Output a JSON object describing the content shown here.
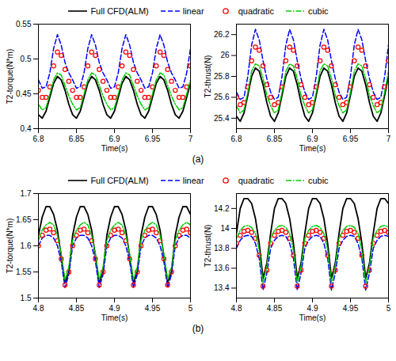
{
  "chart_data": [
    {
      "type": "line",
      "ylabel": "T2-torque(N*m)",
      "xlabel": "Time(s)",
      "legend": "top",
      "annotation": "(a)",
      "xlim": [
        6.8,
        7
      ],
      "xticks": [
        6.8,
        6.85,
        6.9,
        6.95,
        7
      ],
      "ylim": [
        0.4,
        0.55
      ],
      "yticks": [
        0.4,
        0.45,
        0.5,
        0.55
      ],
      "x": [
        6.8,
        6.805,
        6.81,
        6.815,
        6.82,
        6.825,
        6.83,
        6.835,
        6.84,
        6.845,
        6.85,
        6.855,
        6.86,
        6.865,
        6.87,
        6.875,
        6.88,
        6.885,
        6.89,
        6.895,
        6.9,
        6.905,
        6.91,
        6.915,
        6.92,
        6.925,
        6.93,
        6.935,
        6.94,
        6.945,
        6.95,
        6.955,
        6.96,
        6.965,
        6.97,
        6.975,
        6.98,
        6.985,
        6.99,
        6.995,
        7
      ],
      "series": [
        {
          "name": "Full CFD(ALM)",
          "color": "#000000",
          "type": "line",
          "line_style": "solid",
          "values": [
            0.42,
            0.415,
            0.425,
            0.445,
            0.465,
            0.475,
            0.47,
            0.455,
            0.435,
            0.42,
            0.415,
            0.425,
            0.445,
            0.465,
            0.475,
            0.47,
            0.455,
            0.435,
            0.42,
            0.415,
            0.425,
            0.445,
            0.465,
            0.475,
            0.47,
            0.455,
            0.435,
            0.42,
            0.415,
            0.425,
            0.445,
            0.465,
            0.475,
            0.47,
            0.455,
            0.435,
            0.42,
            0.415,
            0.425,
            0.445,
            0.465
          ]
        },
        {
          "name": "linear",
          "color": "#0000ff",
          "type": "line",
          "line_style": "dashed",
          "values": [
            0.47,
            0.458,
            0.46,
            0.48,
            0.515,
            0.535,
            0.52,
            0.495,
            0.48,
            0.47,
            0.458,
            0.46,
            0.48,
            0.515,
            0.535,
            0.52,
            0.495,
            0.48,
            0.47,
            0.458,
            0.46,
            0.48,
            0.515,
            0.535,
            0.52,
            0.495,
            0.48,
            0.47,
            0.458,
            0.46,
            0.48,
            0.515,
            0.535,
            0.52,
            0.495,
            0.48,
            0.47,
            0.458,
            0.46,
            0.48,
            0.515
          ]
        },
        {
          "name": "quadratic",
          "color": "#ff0000",
          "type": "scatter",
          "marker": "circle",
          "values": [
            0.455,
            0.445,
            0.445,
            0.46,
            0.49,
            0.51,
            0.505,
            0.485,
            0.468,
            0.455,
            0.445,
            0.445,
            0.46,
            0.49,
            0.51,
            0.505,
            0.485,
            0.468,
            0.455,
            0.445,
            0.445,
            0.46,
            0.49,
            0.51,
            0.505,
            0.485,
            0.468,
            0.455,
            0.445,
            0.445,
            0.46,
            0.49,
            0.51,
            0.505,
            0.485,
            0.468,
            0.455,
            0.445,
            0.445,
            0.46,
            0.49
          ]
        },
        {
          "name": "cubic",
          "color": "#00cc00",
          "type": "line",
          "line_style": "dashdot",
          "values": [
            0.435,
            0.427,
            0.43,
            0.45,
            0.47,
            0.48,
            0.477,
            0.462,
            0.447,
            0.435,
            0.427,
            0.43,
            0.45,
            0.47,
            0.48,
            0.477,
            0.462,
            0.447,
            0.435,
            0.427,
            0.43,
            0.45,
            0.47,
            0.48,
            0.477,
            0.462,
            0.447,
            0.435,
            0.427,
            0.43,
            0.45,
            0.47,
            0.48,
            0.477,
            0.462,
            0.447,
            0.435,
            0.427,
            0.43,
            0.45,
            0.47
          ]
        }
      ]
    },
    {
      "type": "line",
      "ylabel": "T2-thrust(N)",
      "xlabel": "Time(s)",
      "xlim": [
        6.8,
        7
      ],
      "xticks": [
        6.8,
        6.85,
        6.9,
        6.95,
        7
      ],
      "ylim": [
        25.3,
        26.3
      ],
      "yticks": [
        25.4,
        25.6,
        25.8,
        26,
        26.2
      ],
      "x": [
        6.8,
        6.805,
        6.81,
        6.815,
        6.82,
        6.825,
        6.83,
        6.835,
        6.84,
        6.845,
        6.85,
        6.855,
        6.86,
        6.865,
        6.87,
        6.875,
        6.88,
        6.885,
        6.89,
        6.895,
        6.9,
        6.905,
        6.91,
        6.915,
        6.92,
        6.925,
        6.93,
        6.935,
        6.94,
        6.945,
        6.95,
        6.955,
        6.96,
        6.965,
        6.97,
        6.975,
        6.98,
        6.985,
        6.99,
        6.995,
        7
      ],
      "series": [
        {
          "name": "Full CFD(ALM)",
          "color": "#000000",
          "type": "line",
          "line_style": "solid",
          "values": [
            25.42,
            25.37,
            25.45,
            25.62,
            25.8,
            25.88,
            25.85,
            25.72,
            25.55,
            25.42,
            25.37,
            25.45,
            25.62,
            25.8,
            25.88,
            25.85,
            25.72,
            25.55,
            25.42,
            25.37,
            25.45,
            25.62,
            25.8,
            25.88,
            25.85,
            25.72,
            25.55,
            25.42,
            25.37,
            25.45,
            25.62,
            25.8,
            25.88,
            25.85,
            25.72,
            25.55,
            25.42,
            25.37,
            25.45,
            25.62,
            25.8
          ]
        },
        {
          "name": "linear",
          "color": "#0000ff",
          "type": "line",
          "line_style": "dashed",
          "values": [
            25.65,
            25.58,
            25.6,
            25.8,
            26.1,
            26.25,
            26.15,
            25.95,
            25.78,
            25.65,
            25.58,
            25.6,
            25.8,
            26.1,
            26.25,
            26.15,
            25.95,
            25.78,
            25.65,
            25.58,
            25.6,
            25.8,
            26.1,
            26.25,
            26.15,
            25.95,
            25.78,
            25.65,
            25.58,
            25.6,
            25.8,
            26.1,
            26.25,
            26.15,
            25.95,
            25.78,
            25.65,
            25.58,
            25.6,
            25.8,
            26.1
          ]
        },
        {
          "name": "quadratic",
          "color": "#ff0000",
          "type": "scatter",
          "marker": "circle",
          "values": [
            25.6,
            25.53,
            25.55,
            25.7,
            25.95,
            26.08,
            26.05,
            25.9,
            25.72,
            25.6,
            25.53,
            25.55,
            25.7,
            25.95,
            26.08,
            26.05,
            25.9,
            25.72,
            25.6,
            25.53,
            25.55,
            25.7,
            25.95,
            26.08,
            26.05,
            25.9,
            25.72,
            25.6,
            25.53,
            25.55,
            25.7,
            25.95,
            26.08,
            26.05,
            25.9,
            25.72,
            25.6,
            25.53,
            25.55,
            25.7,
            25.95
          ]
        },
        {
          "name": "cubic",
          "color": "#00cc00",
          "type": "line",
          "line_style": "dashdot",
          "values": [
            25.52,
            25.45,
            25.48,
            25.65,
            25.85,
            25.92,
            25.9,
            25.78,
            25.62,
            25.52,
            25.45,
            25.48,
            25.65,
            25.85,
            25.92,
            25.9,
            25.78,
            25.62,
            25.52,
            25.45,
            25.48,
            25.65,
            25.85,
            25.92,
            25.9,
            25.78,
            25.62,
            25.52,
            25.45,
            25.48,
            25.65,
            25.85,
            25.92,
            25.9,
            25.78,
            25.62,
            25.52,
            25.45,
            25.48,
            25.65,
            25.85
          ]
        }
      ]
    },
    {
      "type": "line",
      "ylabel": "T2-torque(N*m)",
      "xlabel": "Time(s)",
      "legend": "top",
      "annotation": "(b)",
      "xlim": [
        4.8,
        5
      ],
      "xticks": [
        4.8,
        4.85,
        4.9,
        4.95,
        5
      ],
      "ylim": [
        1.5,
        1.7
      ],
      "yticks": [
        1.5,
        1.55,
        1.6,
        1.65,
        1.7
      ],
      "x": [
        4.8,
        4.805,
        4.81,
        4.815,
        4.82,
        4.825,
        4.83,
        4.835,
        4.84,
        4.845,
        4.85,
        4.855,
        4.86,
        4.865,
        4.87,
        4.875,
        4.88,
        4.885,
        4.89,
        4.895,
        4.9,
        4.905,
        4.91,
        4.915,
        4.92,
        4.925,
        4.93,
        4.935,
        4.94,
        4.945,
        4.95,
        4.955,
        4.96,
        4.965,
        4.97,
        4.975,
        4.98,
        4.985,
        4.99,
        4.995,
        5
      ],
      "series": [
        {
          "name": "Full CFD(ALM)",
          "color": "#000000",
          "type": "line",
          "line_style": "solid",
          "values": [
            1.62,
            1.655,
            1.675,
            1.675,
            1.66,
            1.63,
            1.58,
            1.53,
            1.55,
            1.62,
            1.655,
            1.675,
            1.675,
            1.66,
            1.63,
            1.58,
            1.53,
            1.55,
            1.62,
            1.655,
            1.675,
            1.675,
            1.66,
            1.63,
            1.58,
            1.53,
            1.55,
            1.62,
            1.655,
            1.675,
            1.675,
            1.66,
            1.63,
            1.58,
            1.53,
            1.55,
            1.62,
            1.655,
            1.675,
            1.675,
            1.66
          ]
        },
        {
          "name": "linear",
          "color": "#0000ff",
          "type": "line",
          "line_style": "dashed",
          "values": [
            1.6,
            1.615,
            1.62,
            1.62,
            1.615,
            1.6,
            1.57,
            1.52,
            1.545,
            1.6,
            1.615,
            1.62,
            1.62,
            1.615,
            1.6,
            1.57,
            1.52,
            1.545,
            1.6,
            1.615,
            1.62,
            1.62,
            1.615,
            1.6,
            1.57,
            1.52,
            1.545,
            1.6,
            1.615,
            1.62,
            1.62,
            1.615,
            1.6,
            1.57,
            1.52,
            1.545,
            1.6,
            1.615,
            1.62,
            1.62,
            1.615
          ]
        },
        {
          "name": "quadratic",
          "color": "#ff0000",
          "type": "scatter",
          "marker": "circle",
          "values": [
            1.6,
            1.62,
            1.63,
            1.632,
            1.625,
            1.61,
            1.575,
            1.525,
            1.55,
            1.6,
            1.62,
            1.63,
            1.632,
            1.625,
            1.61,
            1.575,
            1.525,
            1.55,
            1.6,
            1.62,
            1.63,
            1.632,
            1.625,
            1.61,
            1.575,
            1.525,
            1.55,
            1.6,
            1.62,
            1.63,
            1.632,
            1.625,
            1.61,
            1.575,
            1.525,
            1.55,
            1.6,
            1.62,
            1.63,
            1.632,
            1.625
          ]
        },
        {
          "name": "cubic",
          "color": "#00cc00",
          "type": "line",
          "line_style": "dashdot",
          "values": [
            1.61,
            1.63,
            1.64,
            1.645,
            1.64,
            1.62,
            1.585,
            1.535,
            1.56,
            1.61,
            1.63,
            1.64,
            1.645,
            1.64,
            1.62,
            1.585,
            1.535,
            1.56,
            1.61,
            1.63,
            1.64,
            1.645,
            1.64,
            1.62,
            1.585,
            1.535,
            1.56,
            1.61,
            1.63,
            1.64,
            1.645,
            1.64,
            1.62,
            1.585,
            1.535,
            1.56,
            1.61,
            1.63,
            1.64,
            1.645,
            1.64
          ]
        }
      ]
    },
    {
      "type": "line",
      "ylabel": "T2-thrust(N)",
      "xlabel": "Time(s)",
      "xlim": [
        4.8,
        5
      ],
      "xticks": [
        4.8,
        4.85,
        4.9,
        4.95,
        5
      ],
      "ylim": [
        13.3,
        14.35
      ],
      "yticks": [
        13.4,
        13.6,
        13.8,
        14,
        14.2
      ],
      "x": [
        4.8,
        4.805,
        4.81,
        4.815,
        4.82,
        4.825,
        4.83,
        4.835,
        4.84,
        4.845,
        4.85,
        4.855,
        4.86,
        4.865,
        4.87,
        4.875,
        4.88,
        4.885,
        4.89,
        4.895,
        4.9,
        4.905,
        4.91,
        4.915,
        4.92,
        4.925,
        4.93,
        4.935,
        4.94,
        4.945,
        4.95,
        4.955,
        4.96,
        4.965,
        4.97,
        4.975,
        4.98,
        4.985,
        4.99,
        4.995,
        5
      ],
      "series": [
        {
          "name": "Full CFD(ALM)",
          "color": "#000000",
          "type": "line",
          "line_style": "solid",
          "values": [
            13.95,
            14.2,
            14.3,
            14.3,
            14.25,
            14.1,
            13.85,
            13.5,
            13.65,
            13.95,
            14.2,
            14.3,
            14.3,
            14.25,
            14.1,
            13.85,
            13.5,
            13.65,
            13.95,
            14.2,
            14.3,
            14.3,
            14.25,
            14.1,
            13.85,
            13.5,
            13.65,
            13.95,
            14.2,
            14.3,
            14.3,
            14.25,
            14.1,
            13.85,
            13.5,
            13.65,
            13.95,
            14.2,
            14.3,
            14.3,
            14.25
          ]
        },
        {
          "name": "linear",
          "color": "#0000ff",
          "type": "line",
          "line_style": "dashed",
          "values": [
            13.8,
            13.88,
            13.92,
            13.93,
            13.92,
            13.85,
            13.7,
            13.38,
            13.55,
            13.8,
            13.88,
            13.92,
            13.93,
            13.92,
            13.85,
            13.7,
            13.38,
            13.55,
            13.8,
            13.88,
            13.92,
            13.93,
            13.92,
            13.85,
            13.7,
            13.38,
            13.55,
            13.8,
            13.88,
            13.92,
            13.93,
            13.92,
            13.85,
            13.7,
            13.38,
            13.55,
            13.8,
            13.88,
            13.92,
            13.93,
            13.92
          ]
        },
        {
          "name": "quadratic",
          "color": "#ff0000",
          "type": "scatter",
          "marker": "circle",
          "values": [
            13.85,
            13.93,
            13.97,
            13.98,
            13.96,
            13.9,
            13.73,
            13.42,
            13.58,
            13.85,
            13.93,
            13.97,
            13.98,
            13.96,
            13.9,
            13.73,
            13.42,
            13.58,
            13.85,
            13.93,
            13.97,
            13.98,
            13.96,
            13.9,
            13.73,
            13.42,
            13.58,
            13.85,
            13.93,
            13.97,
            13.98,
            13.96,
            13.9,
            13.73,
            13.42,
            13.58,
            13.85,
            13.93,
            13.97,
            13.98,
            13.96
          ]
        },
        {
          "name": "cubic",
          "color": "#00cc00",
          "type": "line",
          "line_style": "dashdot",
          "values": [
            13.9,
            13.98,
            14.02,
            14.03,
            14.01,
            13.95,
            13.78,
            13.45,
            13.62,
            13.9,
            13.98,
            14.02,
            14.03,
            14.01,
            13.95,
            13.78,
            13.45,
            13.62,
            13.9,
            13.98,
            14.02,
            14.03,
            14.01,
            13.95,
            13.78,
            13.45,
            13.62,
            13.9,
            13.98,
            14.02,
            14.03,
            14.01,
            13.95,
            13.78,
            13.45,
            13.62,
            13.9,
            13.98,
            14.02,
            14.03,
            14.01
          ]
        }
      ]
    }
  ]
}
